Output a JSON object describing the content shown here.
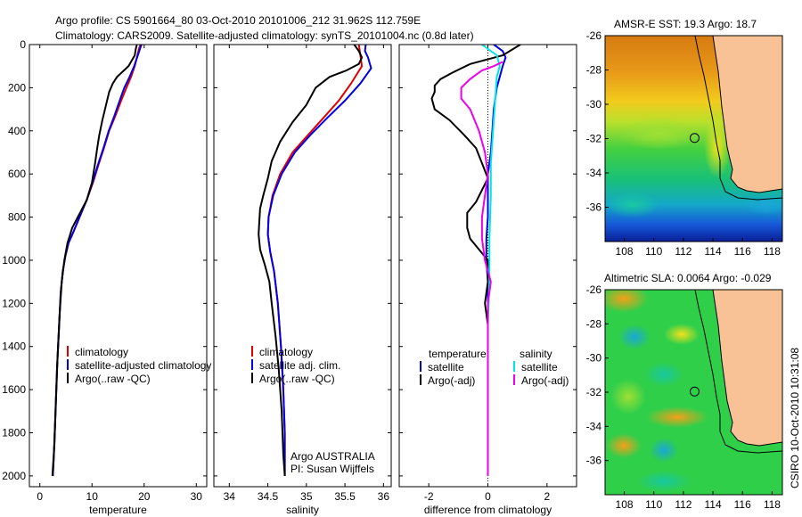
{
  "figure": {
    "title_line1": "Argo profile: CS 5901664_80 03-Oct-2010 20101006_212 31.962S 112.759E",
    "title_line2": "Climatology: CARS2009. Satellite-adjusted climatology: synTS_20101004.nc (0.8d later)",
    "credit": "CSIRO 10-Oct-2010 10:31:08",
    "argo_label1": "Argo AUSTRALIA",
    "argo_label2": "PI: Susan Wijffels"
  },
  "colors": {
    "climatology": "#e00000",
    "satellite": "#0000e6",
    "argo": "#000000",
    "salinity_sat": "#00e6e6",
    "salinity_argo": "#ee00ee",
    "land": "#f9c296",
    "sea_shallow": "#2fcf4a"
  },
  "chart_data": [
    {
      "type": "line",
      "panel": "temperature",
      "xlabel": "temperature",
      "ylabel": "",
      "xlim": [
        -2,
        32
      ],
      "ylim": [
        2050,
        0
      ],
      "y_reversed": true,
      "xticks": [
        0,
        10,
        20,
        30
      ],
      "yticks": [
        0,
        200,
        400,
        600,
        800,
        1000,
        1200,
        1400,
        1600,
        1800,
        2000
      ],
      "legend": [
        "climatology",
        "satellite-adjusted climatology",
        "Argo(..raw -QC)"
      ],
      "series": [
        {
          "name": "climatology",
          "color_key": "climatology",
          "points": [
            [
              19.3,
              0
            ],
            [
              19.0,
              20
            ],
            [
              18.7,
              50
            ],
            [
              18.2,
              100
            ],
            [
              17.5,
              150
            ],
            [
              16.6,
              200
            ],
            [
              15.6,
              260
            ],
            [
              14.5,
              330
            ],
            [
              13.3,
              400
            ],
            [
              12.3,
              480
            ],
            [
              11.2,
              560
            ],
            [
              10.2,
              640
            ],
            [
              9.0,
              720
            ],
            [
              7.8,
              790
            ],
            [
              6.6,
              860
            ],
            [
              5.5,
              920
            ],
            [
              4.9,
              980
            ],
            [
              4.4,
              1050
            ],
            [
              4.0,
              1150
            ],
            [
              3.7,
              1300
            ],
            [
              3.3,
              1500
            ],
            [
              3.0,
              1700
            ],
            [
              2.7,
              1900
            ],
            [
              2.5,
              2000
            ]
          ]
        },
        {
          "name": "satellite-adjusted climatology",
          "color_key": "satellite",
          "points": [
            [
              19.5,
              0
            ],
            [
              19.2,
              20
            ],
            [
              18.8,
              50
            ],
            [
              18.1,
              100
            ],
            [
              17.2,
              150
            ],
            [
              16.2,
              200
            ],
            [
              15.3,
              260
            ],
            [
              14.3,
              330
            ],
            [
              13.2,
              400
            ],
            [
              12.2,
              480
            ],
            [
              11.1,
              560
            ],
            [
              10.1,
              640
            ],
            [
              9.0,
              720
            ],
            [
              7.6,
              800
            ],
            [
              6.4,
              870
            ],
            [
              5.5,
              920
            ],
            [
              4.9,
              980
            ],
            [
              4.4,
              1050
            ],
            [
              4.0,
              1150
            ],
            [
              3.7,
              1300
            ],
            [
              3.3,
              1500
            ],
            [
              3.0,
              1700
            ],
            [
              2.7,
              1900
            ],
            [
              2.5,
              2000
            ]
          ]
        },
        {
          "name": "Argo(..raw -QC)",
          "color_key": "argo",
          "points": [
            [
              18.6,
              0
            ],
            [
              18.4,
              20
            ],
            [
              18.2,
              50
            ],
            [
              17.0,
              100
            ],
            [
              14.8,
              150
            ],
            [
              14.0,
              180
            ],
            [
              13.3,
              220
            ],
            [
              12.7,
              280
            ],
            [
              12.0,
              350
            ],
            [
              11.4,
              420
            ],
            [
              11.0,
              480
            ],
            [
              10.6,
              550
            ],
            [
              10.0,
              640
            ],
            [
              9.0,
              720
            ],
            [
              7.5,
              790
            ],
            [
              6.2,
              850
            ],
            [
              5.3,
              920
            ],
            [
              4.7,
              1000
            ],
            [
              4.2,
              1100
            ],
            [
              3.8,
              1250
            ],
            [
              3.4,
              1450
            ],
            [
              3.1,
              1650
            ],
            [
              2.8,
              1850
            ],
            [
              2.4,
              2000
            ]
          ]
        }
      ]
    },
    {
      "type": "line",
      "panel": "salinity",
      "xlabel": "salinity",
      "ylabel": "",
      "xlim": [
        33.8,
        36.1
      ],
      "ylim": [
        2050,
        0
      ],
      "y_reversed": true,
      "xticks": [
        34,
        34.5,
        35,
        35.5,
        36
      ],
      "legend": [
        "climatology",
        "satellite adj. clim.",
        "Argo(..raw -QC)"
      ],
      "series": [
        {
          "name": "climatology",
          "color_key": "climatology",
          "points": [
            [
              35.68,
              0
            ],
            [
              35.7,
              50
            ],
            [
              35.72,
              100
            ],
            [
              35.58,
              180
            ],
            [
              35.42,
              260
            ],
            [
              35.22,
              340
            ],
            [
              35.02,
              420
            ],
            [
              34.82,
              500
            ],
            [
              34.66,
              600
            ],
            [
              34.56,
              700
            ],
            [
              34.51,
              800
            ],
            [
              34.5,
              880
            ],
            [
              34.53,
              960
            ],
            [
              34.58,
              1050
            ],
            [
              34.63,
              1200
            ],
            [
              34.67,
              1400
            ],
            [
              34.7,
              1600
            ],
            [
              34.72,
              1800
            ],
            [
              34.72,
              2000
            ]
          ]
        },
        {
          "name": "satellite adj. clim.",
          "color_key": "satellite",
          "points": [
            [
              35.77,
              0
            ],
            [
              35.76,
              30
            ],
            [
              35.8,
              60
            ],
            [
              35.84,
              110
            ],
            [
              35.7,
              180
            ],
            [
              35.5,
              260
            ],
            [
              35.27,
              340
            ],
            [
              35.05,
              420
            ],
            [
              34.85,
              500
            ],
            [
              34.68,
              600
            ],
            [
              34.57,
              700
            ],
            [
              34.51,
              800
            ],
            [
              34.5,
              880
            ],
            [
              34.53,
              960
            ],
            [
              34.58,
              1050
            ],
            [
              34.63,
              1200
            ],
            [
              34.67,
              1400
            ],
            [
              34.7,
              1600
            ],
            [
              34.72,
              1800
            ],
            [
              34.72,
              2000
            ]
          ]
        },
        {
          "name": "Argo(..raw -QC)",
          "color_key": "argo",
          "points": [
            [
              35.62,
              0
            ],
            [
              35.68,
              30
            ],
            [
              35.72,
              60
            ],
            [
              35.68,
              90
            ],
            [
              35.52,
              120
            ],
            [
              35.3,
              150
            ],
            [
              35.12,
              200
            ],
            [
              35.0,
              280
            ],
            [
              34.82,
              360
            ],
            [
              34.66,
              450
            ],
            [
              34.55,
              540
            ],
            [
              34.5,
              620
            ],
            [
              34.44,
              700
            ],
            [
              34.4,
              760
            ],
            [
              34.39,
              820
            ],
            [
              34.38,
              880
            ],
            [
              34.4,
              950
            ],
            [
              34.46,
              1020
            ],
            [
              34.52,
              1100
            ],
            [
              34.55,
              1200
            ],
            [
              34.6,
              1350
            ],
            [
              34.64,
              1500
            ],
            [
              34.68,
              1700
            ],
            [
              34.7,
              1900
            ],
            [
              34.72,
              2000
            ]
          ]
        }
      ]
    },
    {
      "type": "line",
      "panel": "difference",
      "xlabel": "difference from climatology",
      "ylabel": "",
      "xlim": [
        -3,
        3
      ],
      "ylim": [
        2050,
        0
      ],
      "y_reversed": true,
      "xticks": [
        -2,
        0,
        2
      ],
      "legend_headers": [
        "temperature",
        "salinity"
      ],
      "legend": [
        "satellite",
        "Argo(-adj)",
        "satellite",
        "Argo(-adj)"
      ],
      "series": [
        {
          "name": "satellite",
          "group": "temperature",
          "color_key": "satellite",
          "points": [
            [
              0.2,
              0
            ],
            [
              0.5,
              30
            ],
            [
              0.6,
              60
            ],
            [
              0.5,
              100
            ],
            [
              0.4,
              150
            ],
            [
              0.3,
              200
            ],
            [
              0.2,
              300
            ],
            [
              0.15,
              400
            ],
            [
              0.1,
              500
            ],
            [
              0.0,
              600
            ],
            [
              0.0,
              800
            ],
            [
              -0.05,
              900
            ],
            [
              -0.05,
              1000
            ],
            [
              0.0,
              1100
            ],
            [
              0.0,
              1300
            ],
            [
              0.0,
              1500
            ],
            [
              0.0,
              1700
            ],
            [
              0.0,
              1900
            ],
            [
              0.0,
              2000
            ]
          ]
        },
        {
          "name": "Argo(-adj)",
          "group": "temperature",
          "color_key": "argo",
          "points": [
            [
              1.1,
              0
            ],
            [
              0.5,
              50
            ],
            [
              -0.6,
              90
            ],
            [
              -1.2,
              130
            ],
            [
              -1.6,
              160
            ],
            [
              -1.8,
              190
            ],
            [
              -1.8,
              220
            ],
            [
              -1.9,
              250
            ],
            [
              -1.8,
              300
            ],
            [
              -1.3,
              350
            ],
            [
              -0.8,
              420
            ],
            [
              -0.4,
              480
            ],
            [
              -0.2,
              550
            ],
            [
              0.0,
              620
            ],
            [
              -0.4,
              730
            ],
            [
              -0.7,
              780
            ],
            [
              -0.7,
              850
            ],
            [
              -0.6,
              900
            ],
            [
              -0.3,
              950
            ],
            [
              0.0,
              1000
            ],
            [
              0.0,
              1100
            ],
            [
              -0.1,
              1200
            ],
            [
              0.0,
              1300
            ],
            [
              0.0,
              1500
            ],
            [
              0.0,
              1700
            ],
            [
              0.0,
              1900
            ],
            [
              0.0,
              2000
            ]
          ]
        },
        {
          "name": "satellite",
          "group": "salinity",
          "color_key": "salinity_sat",
          "points": [
            [
              -0.2,
              0
            ],
            [
              0.3,
              50
            ],
            [
              0.4,
              100
            ],
            [
              0.3,
              150
            ],
            [
              0.25,
              250
            ],
            [
              0.2,
              350
            ],
            [
              0.15,
              450
            ],
            [
              0.1,
              550
            ],
            [
              0.1,
              700
            ],
            [
              0.05,
              900
            ],
            [
              0.05,
              1100
            ],
            [
              0.0,
              1300
            ],
            [
              0.0,
              1500
            ],
            [
              0.0,
              1800
            ],
            [
              0.0,
              2000
            ]
          ]
        },
        {
          "name": "Argo(-adj)",
          "group": "salinity",
          "color_key": "salinity_argo",
          "points": [
            [
              0.5,
              80
            ],
            [
              0.2,
              100
            ],
            [
              -0.2,
              120
            ],
            [
              -0.6,
              160
            ],
            [
              -0.9,
              200
            ],
            [
              -0.9,
              250
            ],
            [
              -0.6,
              300
            ],
            [
              -0.3,
              400
            ],
            [
              -0.1,
              500
            ],
            [
              0.0,
              600
            ],
            [
              -0.1,
              700
            ],
            [
              -0.2,
              800
            ],
            [
              -0.2,
              900
            ],
            [
              -0.1,
              1000
            ],
            [
              0.1,
              1100
            ],
            [
              0.0,
              1200
            ],
            [
              0.0,
              1500
            ],
            [
              0.0,
              1800
            ],
            [
              0.0,
              2000
            ]
          ]
        }
      ]
    },
    {
      "type": "heatmap",
      "panel": "sst-map",
      "title": "AMSR-E SST: 19.3 Argo: 18.7",
      "xlim": [
        106.7,
        118.7
      ],
      "ylim": [
        -38,
        -26
      ],
      "xticks": [
        108,
        110,
        112,
        114,
        116,
        118
      ],
      "yticks": [
        -26,
        -28,
        -30,
        -32,
        -34,
        -36
      ],
      "profile_location": [
        112.759,
        -31.962
      ]
    },
    {
      "type": "heatmap",
      "panel": "sla-map",
      "title": "Altimetric SLA: 0.0064 Argo: -0.029",
      "xlim": [
        106.7,
        118.7
      ],
      "ylim": [
        -38,
        -26
      ],
      "xticks": [
        108,
        110,
        112,
        114,
        116,
        118
      ],
      "yticks": [
        -26,
        -28,
        -30,
        -32,
        -34,
        -36
      ],
      "profile_location": [
        112.759,
        -31.962
      ]
    }
  ]
}
